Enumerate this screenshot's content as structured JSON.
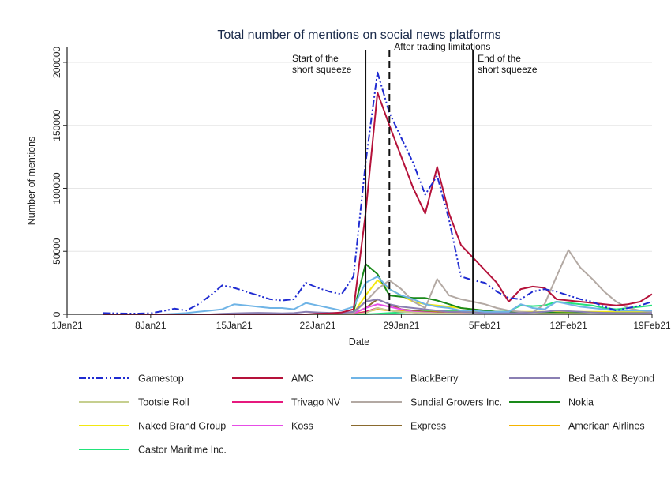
{
  "chart_data": {
    "type": "line",
    "title": "Total number of mentions on social news platforms",
    "xlabel": "Date",
    "ylabel": "Number of mentions",
    "x_ticks": [
      {
        "day": 1,
        "label": "1Jan21"
      },
      {
        "day": 8,
        "label": "8Jan21"
      },
      {
        "day": 15,
        "label": "15Jan21"
      },
      {
        "day": 22,
        "label": "22Jan21"
      },
      {
        "day": 29,
        "label": "29Jan21"
      },
      {
        "day": 36,
        "label": "5Feb21"
      },
      {
        "day": 43,
        "label": "12Feb21"
      },
      {
        "day": 50,
        "label": "19Feb21"
      }
    ],
    "y_ticks": [
      0,
      50000,
      100000,
      150000,
      200000
    ],
    "y_tick_labels": [
      "0",
      "50000",
      "100000",
      "150000",
      "200000"
    ],
    "xlim": [
      1,
      50
    ],
    "ylim": [
      0,
      210000
    ],
    "grid": "horizontal",
    "legend": "bottom",
    "annotations": [
      {
        "day": 26,
        "style": "solid",
        "lines": [
          "Start of the",
          "short squeeze"
        ],
        "align": "left-of"
      },
      {
        "day": 28,
        "style": "dashed",
        "lines": [
          "After trading limitations"
        ],
        "align": "right-of"
      },
      {
        "day": 35,
        "style": "solid",
        "lines": [
          "End of the",
          "short squeeze"
        ],
        "align": "right-of"
      }
    ],
    "x": [
      4,
      5,
      6,
      7,
      8,
      9,
      10,
      11,
      12,
      13,
      14,
      15,
      16,
      17,
      18,
      19,
      20,
      21,
      22,
      23,
      24,
      25,
      26,
      27,
      28,
      29,
      30,
      31,
      32,
      33,
      34,
      35,
      36,
      37,
      38,
      39,
      40,
      41,
      42,
      43,
      44,
      45,
      46,
      47,
      48,
      49,
      50
    ],
    "series": [
      {
        "name": "Gamestop",
        "color": "#1f2bd1",
        "dash": "9,3,2,3,2,3",
        "values": [
          1000,
          800,
          600,
          600,
          900,
          2500,
          4500,
          3000,
          8000,
          15000,
          23000,
          21000,
          18000,
          15000,
          12000,
          11000,
          12000,
          25000,
          21000,
          18000,
          16000,
          30000,
          120000,
          192000,
          160000,
          140000,
          120000,
          95000,
          110000,
          75000,
          30000,
          27000,
          25000,
          18000,
          13000,
          12000,
          18000,
          20000,
          18000,
          15000,
          12000,
          10000,
          6000,
          3000,
          5000,
          7000,
          10000
        ]
      },
      {
        "name": "AMC",
        "color": "#b5123a",
        "dash": "",
        "values": [
          0,
          0,
          0,
          0,
          0,
          0,
          0,
          0,
          0,
          0,
          0,
          0,
          0,
          0,
          0,
          0,
          0,
          0,
          500,
          800,
          1500,
          4000,
          80000,
          176000,
          150000,
          125000,
          100000,
          80000,
          117000,
          80000,
          55000,
          45000,
          35000,
          25000,
          10000,
          20000,
          22000,
          21000,
          12000,
          11000,
          10000,
          9000,
          8000,
          7000,
          8000,
          10000,
          16000
        ]
      },
      {
        "name": "BlackBerry",
        "color": "#6fb4e6",
        "dash": "",
        "values": [
          0,
          0,
          0,
          0,
          0,
          0,
          500,
          1000,
          2000,
          3000,
          4000,
          8000,
          7000,
          6000,
          5000,
          5000,
          4000,
          9000,
          7000,
          5000,
          3000,
          6000,
          25000,
          30000,
          20000,
          15000,
          12000,
          8000,
          6000,
          5000,
          3000,
          3000,
          2000,
          2000,
          2000,
          8000,
          5000,
          4000,
          10000,
          8000,
          6000,
          5000,
          4000,
          3000,
          3000,
          3000,
          3000
        ]
      },
      {
        "name": "Bed Bath & Beyond",
        "color": "#8a7fb3",
        "dash": "",
        "values": [
          0,
          0,
          0,
          0,
          0,
          0,
          0,
          0,
          0,
          0,
          500,
          800,
          1000,
          1200,
          1000,
          800,
          1000,
          2000,
          1500,
          1200,
          1000,
          2000,
          10000,
          12000,
          8000,
          6000,
          5000,
          4000,
          3000,
          2000,
          2000,
          1500,
          1000,
          1000,
          1000,
          1000,
          1500,
          2000,
          3000,
          2500,
          2000,
          1500,
          1200,
          1000,
          1000,
          1000,
          1000
        ]
      },
      {
        "name": "Tootsie Roll",
        "color": "#c6cf8f",
        "dash": "",
        "values": [
          0,
          0,
          0,
          0,
          0,
          0,
          0,
          0,
          0,
          0,
          0,
          0,
          0,
          0,
          0,
          0,
          0,
          0,
          0,
          0,
          0,
          0,
          1000,
          5000,
          3000,
          2000,
          1500,
          1000,
          800,
          600,
          500,
          400,
          300,
          300,
          300,
          300,
          300,
          300,
          300,
          300,
          300,
          300,
          300,
          300,
          300,
          300,
          300
        ]
      },
      {
        "name": "Trivago NV",
        "color": "#e6197e",
        "dash": "",
        "values": [
          0,
          0,
          0,
          0,
          0,
          0,
          0,
          0,
          0,
          0,
          0,
          0,
          0,
          0,
          0,
          0,
          0,
          0,
          0,
          0,
          0,
          0,
          2000,
          5000,
          3000,
          2000,
          1500,
          1000,
          800,
          500,
          500,
          500,
          400,
          400,
          400,
          400,
          400,
          400,
          400,
          400,
          400,
          400,
          400,
          400,
          400,
          400,
          400
        ]
      },
      {
        "name": "Sundial Growers Inc.",
        "color": "#b3a9a3",
        "dash": "",
        "values": [
          0,
          0,
          0,
          0,
          0,
          0,
          0,
          0,
          0,
          0,
          0,
          0,
          0,
          0,
          0,
          0,
          0,
          0,
          0,
          0,
          0,
          1000,
          10000,
          20000,
          27000,
          20000,
          10000,
          5000,
          28000,
          15000,
          12000,
          10000,
          8000,
          5000,
          3000,
          2000,
          1500,
          8000,
          30000,
          51000,
          37000,
          28000,
          18000,
          10000,
          5000,
          3000,
          2000
        ]
      },
      {
        "name": "Nokia",
        "color": "#1a8a1a",
        "dash": "",
        "values": [
          0,
          0,
          0,
          0,
          0,
          0,
          0,
          0,
          0,
          0,
          0,
          0,
          0,
          0,
          0,
          0,
          0,
          0,
          0,
          0,
          0,
          2000,
          40000,
          32000,
          15000,
          14000,
          13000,
          13000,
          11000,
          8000,
          5000,
          4000,
          3000,
          2000,
          2000,
          1500,
          1500,
          1500,
          1200,
          1000,
          1000,
          1000,
          1000,
          1000,
          1000,
          1000,
          1000
        ]
      },
      {
        "name": "Naked Brand Group",
        "color": "#f2e811",
        "dash": "",
        "values": [
          0,
          0,
          0,
          0,
          0,
          0,
          0,
          0,
          0,
          0,
          0,
          0,
          0,
          0,
          0,
          0,
          0,
          0,
          0,
          0,
          0,
          1000,
          15000,
          27000,
          20000,
          15000,
          10000,
          8000,
          7000,
          6000,
          5000,
          4000,
          3000,
          2000,
          2000,
          2000,
          2000,
          2000,
          2000,
          2000,
          2000,
          2000,
          2000,
          2000,
          2000,
          2000,
          2000
        ]
      },
      {
        "name": "Koss",
        "color": "#e64de6",
        "dash": "",
        "values": [
          0,
          0,
          0,
          0,
          0,
          0,
          0,
          0,
          0,
          0,
          0,
          0,
          0,
          0,
          0,
          0,
          0,
          0,
          0,
          0,
          0,
          500,
          5000,
          8000,
          6000,
          4000,
          2000,
          1500,
          1000,
          800,
          600,
          500,
          500,
          500,
          500,
          500,
          500,
          500,
          500,
          500,
          500,
          500,
          500,
          500,
          500,
          500,
          500
        ]
      },
      {
        "name": "Express",
        "color": "#8a6a2e",
        "dash": "",
        "values": [
          0,
          0,
          0,
          0,
          0,
          0,
          0,
          0,
          0,
          0,
          0,
          0,
          0,
          0,
          0,
          0,
          0,
          0,
          0,
          0,
          0,
          800,
          5000,
          12000,
          8000,
          4000,
          3000,
          2000,
          1500,
          1000,
          800,
          800,
          600,
          600,
          600,
          600,
          600,
          600,
          600,
          600,
          600,
          600,
          600,
          600,
          600,
          600,
          600
        ]
      },
      {
        "name": "American Airlines",
        "color": "#f5b400",
        "dash": "",
        "values": [
          0,
          0,
          0,
          0,
          0,
          0,
          0,
          0,
          0,
          0,
          0,
          0,
          0,
          0,
          0,
          0,
          0,
          0,
          0,
          0,
          0,
          500,
          2000,
          4000,
          3000,
          3000,
          2500,
          2000,
          2000,
          2000,
          2000,
          1800,
          1500,
          1500,
          1500,
          1500,
          1500,
          1500,
          1500,
          1500,
          1500,
          1500,
          1500,
          1500,
          1500,
          1500,
          1500
        ]
      },
      {
        "name": "Castor Maritime Inc.",
        "color": "#22e37a",
        "dash": "",
        "values": [
          0,
          0,
          0,
          0,
          0,
          0,
          0,
          0,
          0,
          0,
          0,
          0,
          0,
          0,
          0,
          0,
          0,
          0,
          0,
          0,
          0,
          0,
          0,
          500,
          1000,
          1500,
          2000,
          2500,
          3000,
          3000,
          2500,
          2000,
          2000,
          2000,
          2500,
          7000,
          6500,
          7000,
          10000,
          9000,
          8000,
          7000,
          5000,
          4000,
          5000,
          6000,
          7000
        ]
      }
    ]
  }
}
